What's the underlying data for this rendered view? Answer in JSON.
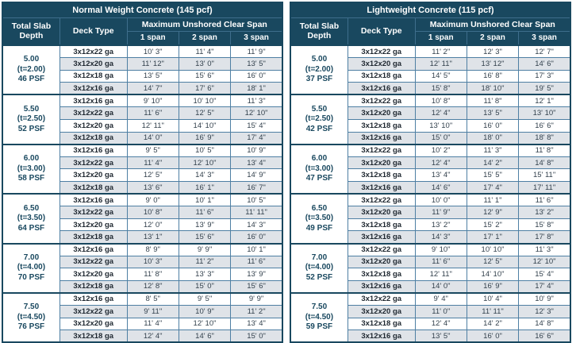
{
  "colors": {
    "header_bg": "#19485f",
    "header_text": "#ffffff",
    "row_shade": "#dfe3e8",
    "grid_line": "#4e7fa3",
    "frame_line": "#19485f",
    "slab_text": "#19485f",
    "deck_text": "#1e2730",
    "value_text": "#33414d"
  },
  "tables": [
    {
      "title": "Normal Weight Concrete (145 pcf)",
      "columns": {
        "slab": "Total Slab Depth",
        "deck": "Deck Type",
        "span_header": "Maximum Unshored Clear Span",
        "spans": [
          "1 span",
          "2 span",
          "3 span"
        ]
      },
      "groups": [
        {
          "depth": "5.00",
          "thickness": "(t=2.00)",
          "load": "46 PSF",
          "rows": [
            {
              "deck": "3x12x22 ga",
              "spans": [
                "10' 3\"",
                "11' 4\"",
                "11' 9\""
              ]
            },
            {
              "deck": "3x12x20 ga",
              "spans": [
                "11' 12\"",
                "13' 0\"",
                "13' 5\""
              ]
            },
            {
              "deck": "3x12x18 ga",
              "spans": [
                "13' 5\"",
                "15' 6\"",
                "16' 0\""
              ]
            },
            {
              "deck": "3x12x16 ga",
              "spans": [
                "14' 7\"",
                "17' 6\"",
                "18' 1\""
              ]
            }
          ]
        },
        {
          "depth": "5.50",
          "thickness": "(t=2.50)",
          "load": "52 PSF",
          "rows": [
            {
              "deck": "3x12x16 ga",
              "spans": [
                "9' 10\"",
                "10' 10\"",
                "11' 3\""
              ]
            },
            {
              "deck": "3x12x22 ga",
              "spans": [
                "11' 6\"",
                "12' 5\"",
                "12' 10\""
              ]
            },
            {
              "deck": "3x12x20 ga",
              "spans": [
                "12' 11\"",
                "14' 10\"",
                "15' 4\""
              ]
            },
            {
              "deck": "3x12x18 ga",
              "spans": [
                "14' 0\"",
                "16' 9\"",
                "17' 4\""
              ]
            }
          ]
        },
        {
          "depth": "6.00",
          "thickness": "(t=3.00)",
          "load": "58 PSF",
          "rows": [
            {
              "deck": "3x12x16 ga",
              "spans": [
                "9' 5\"",
                "10' 5\"",
                "10' 9\""
              ]
            },
            {
              "deck": "3x12x22 ga",
              "spans": [
                "11' 4\"",
                "12' 10\"",
                "13' 4\""
              ]
            },
            {
              "deck": "3x12x20 ga",
              "spans": [
                "12' 5\"",
                "14' 3\"",
                "14' 9\""
              ]
            },
            {
              "deck": "3x12x18 ga",
              "spans": [
                "13' 6\"",
                "16' 1\"",
                "16' 7\""
              ]
            }
          ]
        },
        {
          "depth": "6.50",
          "thickness": "(t=3.50)",
          "load": "64 PSF",
          "rows": [
            {
              "deck": "3x12x16 ga",
              "spans": [
                "9' 0\"",
                "10' 1\"",
                "10' 5\""
              ]
            },
            {
              "deck": "3x12x22 ga",
              "spans": [
                "10' 8\"",
                "11' 6\"",
                "11' 11\""
              ]
            },
            {
              "deck": "3x12x20 ga",
              "spans": [
                "12' 0\"",
                "13' 9\"",
                "14' 3\""
              ]
            },
            {
              "deck": "3x12x18 ga",
              "spans": [
                "13' 1\"",
                "15' 6\"",
                "16' 0\""
              ]
            }
          ]
        },
        {
          "depth": "7.00",
          "thickness": "(t=4.00)",
          "load": "70 PSF",
          "rows": [
            {
              "deck": "3x12x16 ga",
              "spans": [
                "8' 9\"",
                "9' 9\"",
                "10' 1\""
              ]
            },
            {
              "deck": "3x12x22 ga",
              "spans": [
                "10' 3\"",
                "11' 2\"",
                "11' 6\""
              ]
            },
            {
              "deck": "3x12x20 ga",
              "spans": [
                "11' 8\"",
                "13' 3\"",
                "13' 9\""
              ]
            },
            {
              "deck": "3x12x18 ga",
              "spans": [
                "12' 8\"",
                "15' 0\"",
                "15' 6\""
              ]
            }
          ]
        },
        {
          "depth": "7.50",
          "thickness": "(t=4.50)",
          "load": "76 PSF",
          "rows": [
            {
              "deck": "3x12x16 ga",
              "spans": [
                "8' 5\"",
                "9' 5\"",
                "9' 9\""
              ]
            },
            {
              "deck": "3x12x22 ga",
              "spans": [
                "9' 11\"",
                "10' 9\"",
                "11' 2\""
              ]
            },
            {
              "deck": "3x12x20 ga",
              "spans": [
                "11' 4\"",
                "12' 10\"",
                "13' 4\""
              ]
            },
            {
              "deck": "3x12x18 ga",
              "spans": [
                "12' 4\"",
                "14' 6\"",
                "15' 0\""
              ]
            }
          ]
        }
      ]
    },
    {
      "title": "Lightweight Concrete (115 pcf)",
      "columns": {
        "slab": "Total Slab Depth",
        "deck": "Deck Type",
        "span_header": "Maximum Unshored Clear Span",
        "spans": [
          "1 span",
          "2 span",
          "3 span"
        ]
      },
      "groups": [
        {
          "depth": "5.00",
          "thickness": "(t=2.00)",
          "load": "37 PSF",
          "rows": [
            {
              "deck": "3x12x22 ga",
              "spans": [
                "11' 2\"",
                "12' 3\"",
                "12' 7\""
              ]
            },
            {
              "deck": "3x12x20 ga",
              "spans": [
                "12' 11\"",
                "13' 12\"",
                "14' 6\""
              ]
            },
            {
              "deck": "3x12x18 ga",
              "spans": [
                "14' 5\"",
                "16' 8\"",
                "17' 3\""
              ]
            },
            {
              "deck": "3x12x16 ga",
              "spans": [
                "15' 8\"",
                "18' 10\"",
                "19' 5\""
              ]
            }
          ]
        },
        {
          "depth": "5.50",
          "thickness": "(t=2.50)",
          "load": "42 PSF",
          "rows": [
            {
              "deck": "3x12x22 ga",
              "spans": [
                "10' 8\"",
                "11' 8\"",
                "12' 1\""
              ]
            },
            {
              "deck": "3x12x20 ga",
              "spans": [
                "12' 4\"",
                "13' 5\"",
                "13' 10\""
              ]
            },
            {
              "deck": "3x12x18 ga",
              "spans": [
                "13' 10\"",
                "16' 0\"",
                "16' 6\""
              ]
            },
            {
              "deck": "3x12x16 ga",
              "spans": [
                "15' 0\"",
                "18' 0\"",
                "18' 8\""
              ]
            }
          ]
        },
        {
          "depth": "6.00",
          "thickness": "(t=3.00)",
          "load": "47 PSF",
          "rows": [
            {
              "deck": "3x12x22 ga",
              "spans": [
                "10' 2\"",
                "11' 3\"",
                "11' 8\""
              ]
            },
            {
              "deck": "3x12x20 ga",
              "spans": [
                "12' 4\"",
                "14' 2\"",
                "14' 8\""
              ]
            },
            {
              "deck": "3x12x18 ga",
              "spans": [
                "13' 4\"",
                "15' 5\"",
                "15' 11\""
              ]
            },
            {
              "deck": "3x12x16 ga",
              "spans": [
                "14' 6\"",
                "17' 4\"",
                "17' 11\""
              ]
            }
          ]
        },
        {
          "depth": "6.50",
          "thickness": "(t=3.50)",
          "load": "49 PSF",
          "rows": [
            {
              "deck": "3x12x22 ga",
              "spans": [
                "10' 0\"",
                "11' 1\"",
                "11' 6\""
              ]
            },
            {
              "deck": "3x12x20 ga",
              "spans": [
                "11' 9\"",
                "12' 9\"",
                "13' 2\""
              ]
            },
            {
              "deck": "3x12x18 ga",
              "spans": [
                "13' 2\"",
                "15' 2\"",
                "15' 8\""
              ]
            },
            {
              "deck": "3x12x16 ga",
              "spans": [
                "14' 3\"",
                "17' 1\"",
                "17' 8\""
              ]
            }
          ]
        },
        {
          "depth": "7.00",
          "thickness": "(t=4.00)",
          "load": "52 PSF",
          "rows": [
            {
              "deck": "3x12x22 ga",
              "spans": [
                "9' 10\"",
                "10' 10\"",
                "11' 3\""
              ]
            },
            {
              "deck": "3x12x20 ga",
              "spans": [
                "11' 6\"",
                "12' 5\"",
                "12' 10\""
              ]
            },
            {
              "deck": "3x12x18 ga",
              "spans": [
                "12' 11\"",
                "14' 10\"",
                "15' 4\""
              ]
            },
            {
              "deck": "3x12x16 ga",
              "spans": [
                "14' 0\"",
                "16' 9\"",
                "17' 4\""
              ]
            }
          ]
        },
        {
          "depth": "7.50",
          "thickness": "(t=4.50)",
          "load": "59 PSF",
          "rows": [
            {
              "deck": "3x12x22 ga",
              "spans": [
                "9' 4\"",
                "10' 4\"",
                "10' 9\""
              ]
            },
            {
              "deck": "3x12x20 ga",
              "spans": [
                "11' 0\"",
                "11' 11\"",
                "12' 3\""
              ]
            },
            {
              "deck": "3x12x18 ga",
              "spans": [
                "12' 4\"",
                "14' 2\"",
                "14' 8\""
              ]
            },
            {
              "deck": "3x12x16 ga",
              "spans": [
                "13' 5\"",
                "16' 0\"",
                "16' 6\""
              ]
            }
          ]
        }
      ]
    }
  ]
}
